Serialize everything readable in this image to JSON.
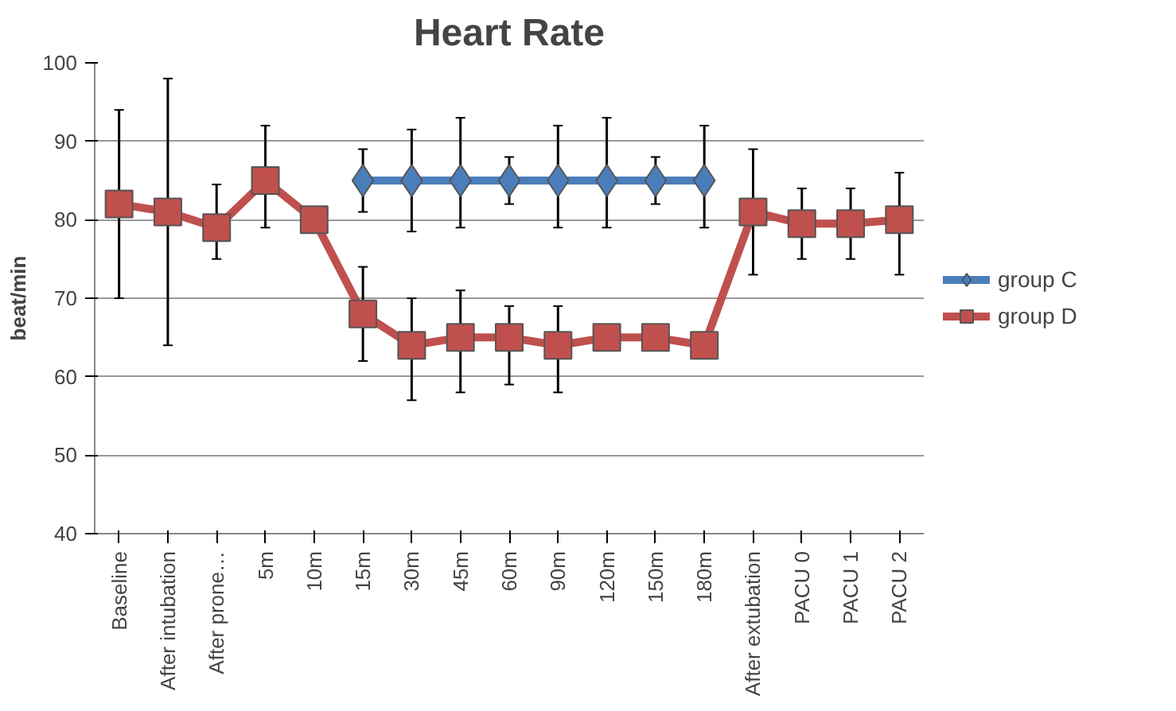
{
  "chart_data": {
    "type": "line",
    "title": "Heart Rate",
    "ylabel": "beat/min",
    "categories": [
      "Baseline",
      "After intubation",
      "After prone…",
      "5m",
      "10m",
      "15m",
      "30m",
      "45m",
      "60m",
      "90m",
      "120m",
      "150m",
      "180m",
      "After extubation",
      "PACU 0",
      "PACU 1",
      "PACU 2"
    ],
    "series": [
      {
        "name": "group C",
        "color": "#4a7ebb",
        "marker": "diamond",
        "values": [
          null,
          null,
          null,
          null,
          null,
          85,
          85,
          85,
          85,
          85,
          85,
          85,
          85,
          null,
          null,
          null,
          null
        ],
        "errors": [
          null,
          null,
          null,
          null,
          null,
          [
            81,
            89
          ],
          [
            78.5,
            91.5
          ],
          [
            79,
            93
          ],
          [
            82,
            88
          ],
          [
            79,
            92
          ],
          [
            79,
            93
          ],
          [
            82,
            88
          ],
          [
            79,
            92
          ],
          null,
          null,
          null,
          null
        ]
      },
      {
        "name": "group D",
        "color": "#c0504d",
        "marker": "square",
        "values": [
          82,
          81,
          79,
          85,
          80,
          68,
          64,
          65,
          65,
          64,
          65,
          65,
          64,
          81,
          79.5,
          79.5,
          80
        ],
        "errors": [
          [
            70,
            94
          ],
          [
            64,
            98
          ],
          [
            75,
            84.5
          ],
          [
            79,
            92
          ],
          null,
          [
            62,
            74
          ],
          [
            57,
            70
          ],
          [
            58,
            71
          ],
          [
            59,
            69
          ],
          [
            58,
            69
          ],
          [
            null,
            null
          ],
          null,
          null,
          [
            73,
            89
          ],
          [
            75,
            84
          ],
          [
            75,
            84
          ],
          [
            73,
            86
          ]
        ]
      }
    ],
    "ylim": [
      40,
      100
    ],
    "yticks": [
      40,
      50,
      60,
      70,
      80,
      90,
      100
    ],
    "grid": "y",
    "legend": "right",
    "line_style": "solid"
  }
}
